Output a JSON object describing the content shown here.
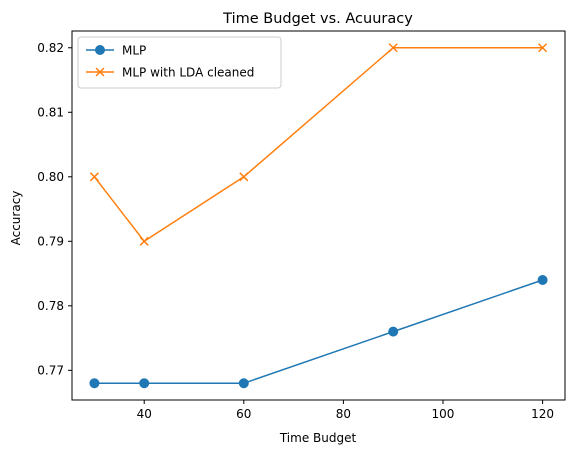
{
  "chart_data": {
    "type": "line",
    "title": "Time Budget vs. Acuuracy",
    "xlabel": "Time Budget",
    "ylabel": "Accuracy",
    "xlim": [
      25.5,
      124.5
    ],
    "ylim": [
      0.7654,
      0.8226
    ],
    "xticks": [
      40,
      60,
      80,
      100,
      120
    ],
    "xtick_labels": [
      "40",
      "60",
      "80",
      "100",
      "120"
    ],
    "yticks": [
      0.77,
      0.78,
      0.79,
      0.8,
      0.81,
      0.82
    ],
    "ytick_labels": [
      "0.77",
      "0.78",
      "0.79",
      "0.80",
      "0.81",
      "0.82"
    ],
    "grid": false,
    "legend_position": "top-left",
    "x": [
      30,
      40,
      60,
      90,
      120
    ],
    "series": [
      {
        "name": "MLP",
        "values": [
          0.768,
          0.768,
          0.768,
          0.776,
          0.784
        ],
        "color": "#1f77b4",
        "marker": "circle"
      },
      {
        "name": "MLP with LDA cleaned",
        "values": [
          0.8,
          0.79,
          0.8,
          0.82,
          0.82
        ],
        "color": "#ff7f0e",
        "marker": "x"
      }
    ]
  }
}
